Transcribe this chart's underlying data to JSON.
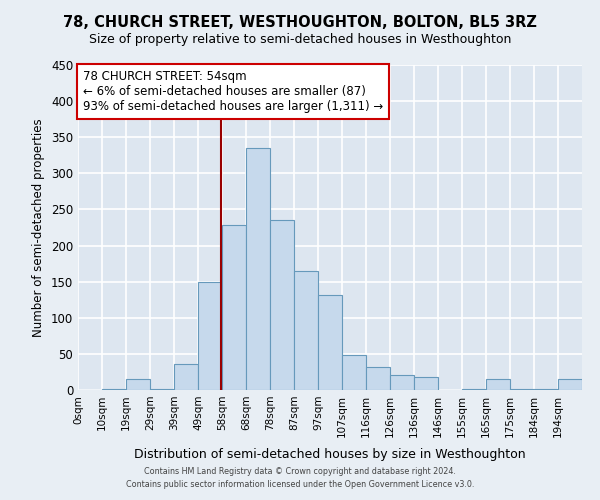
{
  "title": "78, CHURCH STREET, WESTHOUGHTON, BOLTON, BL5 3RZ",
  "subtitle": "Size of property relative to semi-detached houses in Westhoughton",
  "xlabel": "Distribution of semi-detached houses by size in Westhoughton",
  "ylabel": "Number of semi-detached properties",
  "bin_labels": [
    "0sqm",
    "10sqm",
    "19sqm",
    "29sqm",
    "39sqm",
    "49sqm",
    "58sqm",
    "68sqm",
    "78sqm",
    "87sqm",
    "97sqm",
    "107sqm",
    "116sqm",
    "126sqm",
    "136sqm",
    "146sqm",
    "155sqm",
    "165sqm",
    "175sqm",
    "184sqm",
    "194sqm"
  ],
  "bar_values": [
    0,
    2,
    15,
    1,
    36,
    150,
    228,
    335,
    235,
    165,
    131,
    48,
    32,
    21,
    18,
    0,
    2,
    15,
    2,
    2,
    15
  ],
  "bar_color": "#c6d9ec",
  "bar_edge_color": "#6699bb",
  "property_line_x": 5.45,
  "property_line_color": "#990000",
  "annotation_title": "78 CHURCH STREET: 54sqm",
  "annotation_line1": "← 6% of semi-detached houses are smaller (87)",
  "annotation_line2": "93% of semi-detached houses are larger (1,311) →",
  "annotation_box_color": "#ffffff",
  "annotation_box_edge_color": "#cc0000",
  "ylim": [
    0,
    450
  ],
  "yticks": [
    0,
    50,
    100,
    150,
    200,
    250,
    300,
    350,
    400,
    450
  ],
  "footer_line1": "Contains HM Land Registry data © Crown copyright and database right 2024.",
  "footer_line2": "Contains public sector information licensed under the Open Government Licence v3.0.",
  "bg_color": "#e8eef4",
  "plot_bg_color": "#dde6f0",
  "grid_color": "#ffffff"
}
